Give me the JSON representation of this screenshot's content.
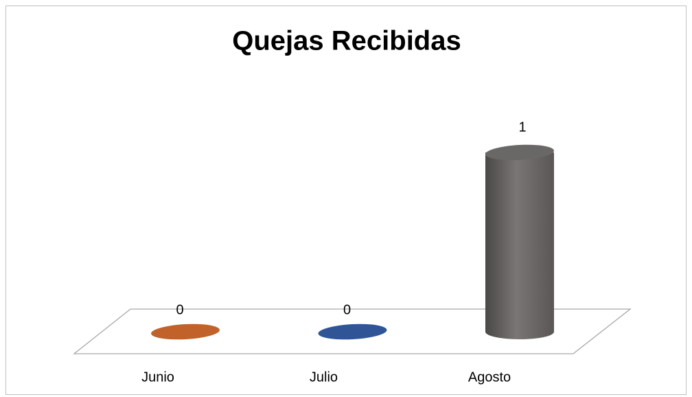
{
  "chart_data": {
    "type": "bar",
    "title": "Quejas Recibidas",
    "categories": [
      "Junio",
      "Julio",
      "Agosto"
    ],
    "values": [
      0,
      0,
      1
    ],
    "colors": [
      "#c0622a",
      "#2f5597",
      "#706c6c"
    ]
  }
}
